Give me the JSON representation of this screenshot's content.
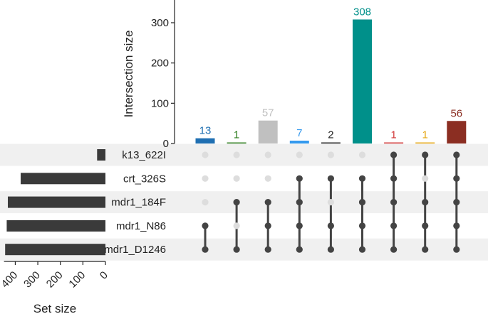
{
  "chart_data": {
    "type": "bar",
    "ylabel": "Intersection size",
    "xlabel": "Set size",
    "ylim": [
      0,
      350
    ],
    "yticks": [
      0,
      100,
      200,
      300
    ],
    "sets": [
      "k13_622I",
      "crt_326S",
      "mdr1_184F",
      "mdr1_N86",
      "mdr1_D1246"
    ],
    "set_sizes": [
      37,
      376,
      433,
      438,
      445
    ],
    "set_size_ticks": [
      400,
      300,
      200,
      100,
      0
    ],
    "set_size_xlim": [
      450,
      0
    ],
    "intersections": [
      {
        "members": [
          "mdr1_N86",
          "mdr1_D1246"
        ],
        "size": 13,
        "color": "#1f6fb2"
      },
      {
        "members": [
          "mdr1_184F",
          "mdr1_D1246"
        ],
        "size": 1,
        "color": "#2e7d1e"
      },
      {
        "members": [
          "mdr1_184F",
          "mdr1_N86",
          "mdr1_D1246"
        ],
        "size": 57,
        "color": "#c0c0c0"
      },
      {
        "members": [
          "crt_326S",
          "mdr1_184F",
          "mdr1_N86",
          "mdr1_D1246"
        ],
        "size": 7,
        "color": "#3399ee"
      },
      {
        "members": [
          "crt_326S",
          "mdr1_N86",
          "mdr1_D1246"
        ],
        "size": 2,
        "color": "#222222"
      },
      {
        "members": [
          "crt_326S",
          "mdr1_184F",
          "mdr1_N86",
          "mdr1_D1246"
        ],
        "size": 308,
        "color": "#00908a"
      },
      {
        "members": [
          "k13_622I",
          "crt_326S",
          "mdr1_184F",
          "mdr1_N86",
          "mdr1_D1246"
        ],
        "size": 1,
        "color": "#d23a3a"
      },
      {
        "members": [
          "k13_622I",
          "mdr1_184F",
          "mdr1_N86",
          "mdr1_D1246"
        ],
        "size": 1,
        "color": "#e6a817"
      },
      {
        "members": [
          "k13_622I",
          "crt_326S",
          "mdr1_184F",
          "mdr1_N86",
          "mdr1_D1246"
        ],
        "size": 56,
        "color": "#8b2e22"
      }
    ],
    "colors": {
      "matrix_dot_active": "#444444",
      "matrix_dot_inactive": "#dddddd",
      "stripe": "#f0f0f0",
      "set_bar": "#3a3a3a"
    }
  }
}
